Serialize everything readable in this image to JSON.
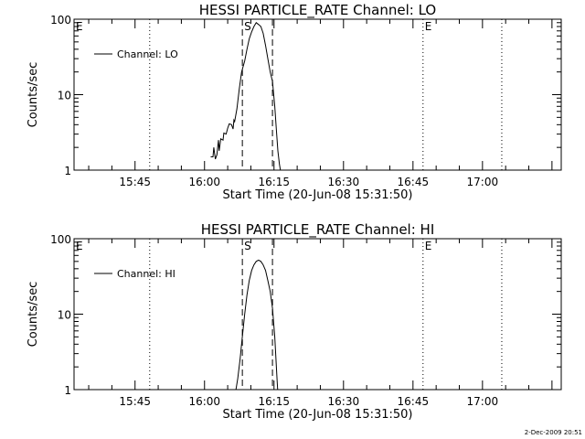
{
  "footer": {
    "timestamp": "2-Dec-2009 20:51"
  },
  "chart_data": [
    {
      "type": "line",
      "title": "HESSI PARTICLE_RATE Channel: LO",
      "xlabel": "Start Time (20-Jun-08 15:31:50)",
      "ylabel": "Counts/sec",
      "y_scale": "log",
      "ylim": [
        1,
        100
      ],
      "yticks": [
        {
          "value": 1,
          "label": "1"
        },
        {
          "value": 10,
          "label": "10"
        },
        {
          "value": 100,
          "label": "100"
        }
      ],
      "xlim": [
        "15:31:50",
        "17:17:00"
      ],
      "xticks": [
        {
          "value": "15:45",
          "label": "15:45"
        },
        {
          "value": "16:00",
          "label": "16:00"
        },
        {
          "value": "16:15",
          "label": "16:15"
        },
        {
          "value": "16:30",
          "label": "16:30"
        },
        {
          "value": "16:45",
          "label": "16:45"
        },
        {
          "value": "17:00",
          "label": "17:00"
        }
      ],
      "legend": {
        "position": "top-left",
        "label": "Channel: LO"
      },
      "markers": [
        {
          "time": "15:31:50",
          "style": "dotted",
          "label": "E"
        },
        {
          "time": "15:48:10",
          "style": "dotted",
          "label": ""
        },
        {
          "time": "16:08:10",
          "style": "dashed",
          "label": "S"
        },
        {
          "time": "16:14:40",
          "style": "dashed",
          "label": ""
        },
        {
          "time": "16:47:10",
          "style": "dotted",
          "label": "E"
        },
        {
          "time": "17:04:10",
          "style": "dotted",
          "label": ""
        }
      ],
      "series": [
        {
          "x": [
            "16:01:20",
            "16:01:50",
            "16:02:00",
            "16:02:20",
            "16:02:40",
            "16:03:00",
            "16:03:10",
            "16:03:30",
            "16:04:00",
            "16:04:10",
            "16:04:40",
            "16:05:00",
            "16:05:20",
            "16:05:50",
            "16:06:10",
            "16:06:20",
            "16:06:30",
            "16:07:00",
            "16:07:30",
            "16:08:00",
            "16:08:40",
            "16:09:10",
            "16:09:40",
            "16:10:10",
            "16:10:40",
            "16:11:10",
            "16:11:40",
            "16:12:10",
            "16:12:40",
            "16:13:10",
            "16:13:40",
            "16:14:10",
            "16:14:40",
            "16:15:10",
            "16:15:30",
            "16:15:50",
            "16:16:10",
            "16:16:30"
          ],
          "y": [
            1.5,
            1.5,
            2.0,
            1.4,
            1.6,
            2.5,
            1.8,
            2.6,
            2.5,
            3.1,
            3.0,
            3.6,
            4.1,
            4.0,
            3.5,
            4.6,
            4.4,
            6.5,
            12,
            20,
            28,
            40,
            55,
            68,
            80,
            90,
            85,
            80,
            65,
            45,
            30,
            20,
            15,
            7,
            3.5,
            1.8,
            1.2,
            0.9
          ]
        }
      ]
    },
    {
      "type": "line",
      "title": "HESSI PARTICLE_RATE Channel: HI",
      "xlabel": "Start Time (20-Jun-08 15:31:50)",
      "ylabel": "Counts/sec",
      "y_scale": "log",
      "ylim": [
        1,
        100
      ],
      "yticks": [
        {
          "value": 1,
          "label": "1"
        },
        {
          "value": 10,
          "label": "10"
        },
        {
          "value": 100,
          "label": "100"
        }
      ],
      "xlim": [
        "15:31:50",
        "17:17:00"
      ],
      "xticks": [
        {
          "value": "15:45",
          "label": "15:45"
        },
        {
          "value": "16:00",
          "label": "16:00"
        },
        {
          "value": "16:15",
          "label": "16:15"
        },
        {
          "value": "16:30",
          "label": "16:30"
        },
        {
          "value": "16:45",
          "label": "16:45"
        },
        {
          "value": "17:00",
          "label": "17:00"
        }
      ],
      "legend": {
        "position": "top-left",
        "label": "Channel: HI"
      },
      "markers": [
        {
          "time": "15:31:50",
          "style": "dotted",
          "label": "E"
        },
        {
          "time": "15:48:10",
          "style": "dotted",
          "label": ""
        },
        {
          "time": "16:08:10",
          "style": "dashed",
          "label": "S"
        },
        {
          "time": "16:14:40",
          "style": "dashed",
          "label": ""
        },
        {
          "time": "16:47:10",
          "style": "dotted",
          "label": "E"
        },
        {
          "time": "17:04:10",
          "style": "dotted",
          "label": ""
        }
      ],
      "series": [
        {
          "x": [
            "16:06:40",
            "16:07:10",
            "16:07:40",
            "16:08:10",
            "16:08:40",
            "16:09:10",
            "16:09:40",
            "16:10:10",
            "16:10:40",
            "16:11:10",
            "16:11:40",
            "16:12:10",
            "16:12:40",
            "16:13:10",
            "16:13:40",
            "16:14:10",
            "16:14:40",
            "16:15:10",
            "16:15:40",
            "16:15:50"
          ],
          "y": [
            0.9,
            1.4,
            2.5,
            5,
            10,
            18,
            28,
            38,
            45,
            50,
            52,
            50,
            45,
            38,
            28,
            20,
            12,
            5,
            1.3,
            0.9
          ]
        }
      ]
    }
  ]
}
